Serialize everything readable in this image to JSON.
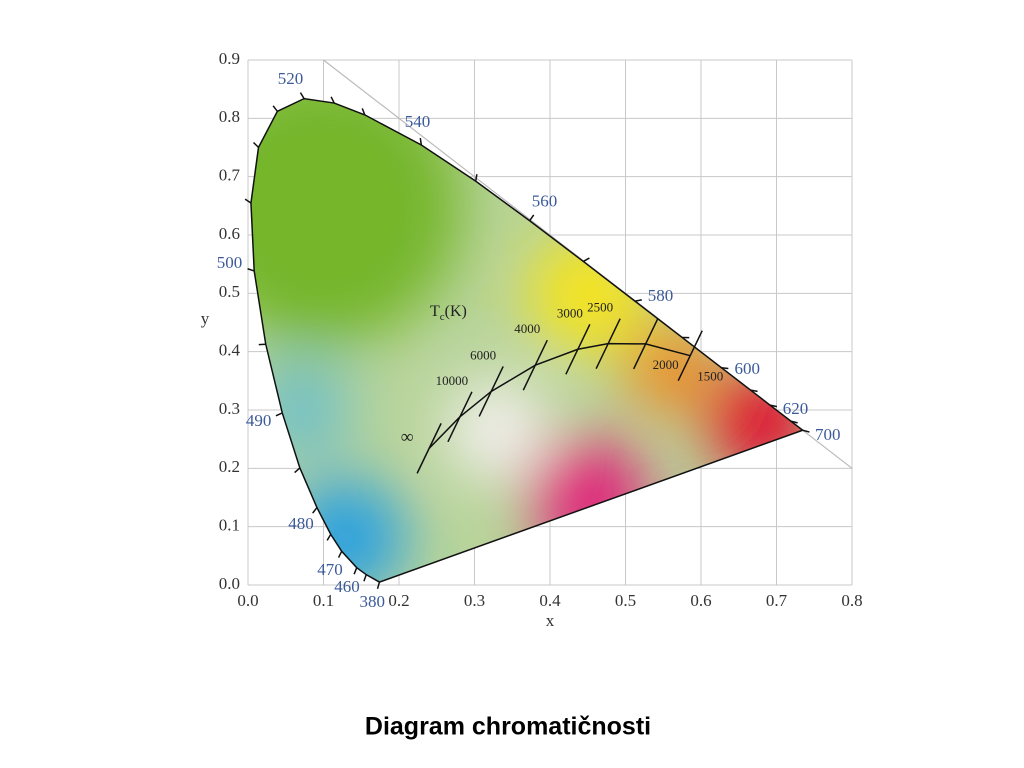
{
  "chart_data": {
    "type": "chromaticity",
    "xlabel": "x",
    "ylabel": "y",
    "xlim": [
      0,
      0.8
    ],
    "ylim": [
      0,
      0.9
    ],
    "xticks": [
      {
        "value": 0,
        "label": "0.0"
      },
      0.1,
      0.2,
      0.3,
      0.4,
      0.5,
      0.6,
      0.7,
      0.8
    ],
    "yticks": [
      {
        "value": 0,
        "label": "0.0"
      },
      0.1,
      0.2,
      0.3,
      0.4,
      0.5,
      0.6,
      0.7,
      0.8,
      0.9
    ],
    "grid": true,
    "locus": {
      "labels": [
        "380",
        null,
        "460",
        "470",
        null,
        "480",
        null,
        "490",
        null,
        "500",
        null,
        null,
        null,
        "520",
        null,
        null,
        "540",
        null,
        "560",
        null,
        "580",
        null,
        "600",
        null,
        "620",
        null,
        "700"
      ],
      "x": [
        0.1741,
        0.1566,
        0.144,
        0.1241,
        0.1096,
        0.0913,
        0.0687,
        0.0454,
        0.0235,
        0.0082,
        0.0039,
        0.0139,
        0.0389,
        0.0743,
        0.1142,
        0.1547,
        0.2296,
        0.3016,
        0.3731,
        0.4441,
        0.5125,
        0.5752,
        0.627,
        0.6658,
        0.6915,
        0.719,
        0.7347
      ],
      "y": [
        0.005,
        0.0177,
        0.0297,
        0.0578,
        0.0868,
        0.1327,
        0.2007,
        0.295,
        0.4127,
        0.5384,
        0.6548,
        0.7502,
        0.812,
        0.8338,
        0.8262,
        0.8059,
        0.7543,
        0.6923,
        0.6245,
        0.5547,
        0.4866,
        0.4242,
        0.3725,
        0.334,
        0.3083,
        0.2809,
        0.2653
      ]
    },
    "planckian": {
      "title": {
        "symbol": "T",
        "subscript": "c",
        "unit": "(K)"
      },
      "labels": [
        "1500",
        "2000",
        "2500",
        "3000",
        "4000",
        "6000",
        "10000",
        "∞"
      ],
      "x": [
        0.5857,
        0.5267,
        0.477,
        0.4369,
        0.3805,
        0.3221,
        0.2807,
        0.2399
      ],
      "y": [
        0.3931,
        0.4133,
        0.4137,
        0.4041,
        0.3768,
        0.3318,
        0.2883,
        0.2342
      ]
    },
    "reference_line": {
      "x": [
        0.1,
        0.8
      ],
      "y": [
        0.9,
        0.2
      ]
    },
    "caption": "Diagram chromatičnosti"
  }
}
